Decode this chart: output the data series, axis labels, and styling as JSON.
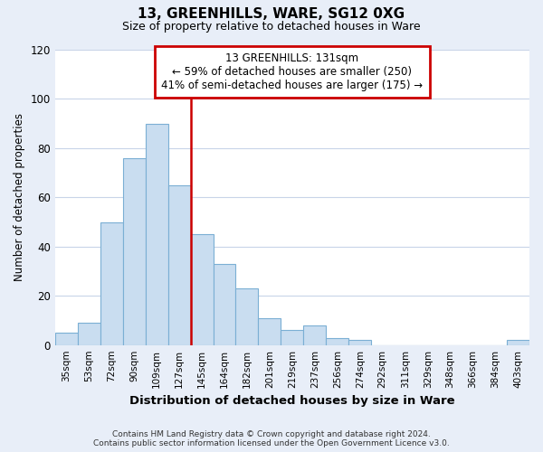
{
  "title": "13, GREENHILLS, WARE, SG12 0XG",
  "subtitle": "Size of property relative to detached houses in Ware",
  "xlabel": "Distribution of detached houses by size in Ware",
  "ylabel": "Number of detached properties",
  "categories": [
    "35sqm",
    "53sqm",
    "72sqm",
    "90sqm",
    "109sqm",
    "127sqm",
    "145sqm",
    "164sqm",
    "182sqm",
    "201sqm",
    "219sqm",
    "237sqm",
    "256sqm",
    "274sqm",
    "292sqm",
    "311sqm",
    "329sqm",
    "348sqm",
    "366sqm",
    "384sqm",
    "403sqm"
  ],
  "values": [
    5,
    9,
    50,
    76,
    90,
    65,
    45,
    33,
    23,
    11,
    6,
    8,
    3,
    2,
    0,
    0,
    0,
    0,
    0,
    0,
    2
  ],
  "bar_color": "#c9ddf0",
  "bar_edge_color": "#7bafd4",
  "vline_x_index": 5,
  "vline_color": "#cc0000",
  "ylim": [
    0,
    120
  ],
  "yticks": [
    0,
    20,
    40,
    60,
    80,
    100,
    120
  ],
  "annotation_title": "13 GREENHILLS: 131sqm",
  "annotation_line1": "← 59% of detached houses are smaller (250)",
  "annotation_line2": "41% of semi-detached houses are larger (175) →",
  "annotation_box_color": "#ffffff",
  "annotation_box_edge": "#cc0000",
  "footer_line1": "Contains HM Land Registry data © Crown copyright and database right 2024.",
  "footer_line2": "Contains public sector information licensed under the Open Government Licence v3.0.",
  "background_color": "#e8eef8",
  "plot_background": "#ffffff",
  "grid_color": "#c8d4e8"
}
